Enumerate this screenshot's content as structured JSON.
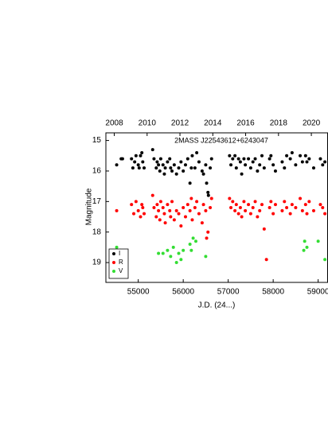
{
  "chart_data": {
    "type": "scatter",
    "title": "2MASS J22543612+6243047",
    "x_label": "J.D. (24...)",
    "y_label": "Magnitude",
    "xlim": [
      54280,
      59210
    ],
    "xticks": [
      55000,
      56000,
      57000,
      58000,
      59000
    ],
    "x2lim": [
      2007.49,
      2020.99
    ],
    "x2ticks": [
      2008,
      2010,
      2012,
      2014,
      2016,
      2018,
      2020
    ],
    "ylim": [
      14.75,
      19.65
    ],
    "yticks": [
      15,
      16,
      17,
      18,
      19
    ],
    "y_inverted": true,
    "legend": "lower left",
    "series": [
      {
        "name": "I",
        "color": "#000000",
        "x": [
          54520,
          54620,
          54650,
          54850,
          54880,
          54920,
          54950,
          55000,
          55020,
          55050,
          55080,
          55100,
          55130,
          55320,
          55350,
          55400,
          55420,
          55450,
          55480,
          55500,
          55550,
          55580,
          55600,
          55650,
          55700,
          55720,
          55750,
          55800,
          55850,
          55900,
          55950,
          56000,
          56050,
          56100,
          56150,
          56180,
          56200,
          56260,
          56300,
          56350,
          56420,
          56450,
          56500,
          56520,
          56550,
          56560,
          56600,
          56630,
          57030,
          57060,
          57100,
          57150,
          57180,
          57230,
          57270,
          57300,
          57350,
          57380,
          57450,
          57500,
          57550,
          57600,
          57650,
          57700,
          57750,
          57800,
          57920,
          57950,
          58000,
          58050,
          58200,
          58250,
          58300,
          58380,
          58420,
          58500,
          58600,
          58650,
          58720,
          58750,
          58800,
          58900,
          59050,
          59100,
          59150
        ],
        "values": [
          15.8,
          15.6,
          15.6,
          15.6,
          15.9,
          15.7,
          15.5,
          15.8,
          15.9,
          15.5,
          15.4,
          15.7,
          15.9,
          15.3,
          15.6,
          15.9,
          15.7,
          15.8,
          16.0,
          15.6,
          15.8,
          16.1,
          15.9,
          15.7,
          15.6,
          15.9,
          16.0,
          15.8,
          16.1,
          15.9,
          15.7,
          16.0,
          15.8,
          15.6,
          16.4,
          15.9,
          15.5,
          15.9,
          15.4,
          15.7,
          16.0,
          16.1,
          15.8,
          16.4,
          16.7,
          16.8,
          15.9,
          15.6,
          15.5,
          15.8,
          15.6,
          15.5,
          15.9,
          15.6,
          15.7,
          16.1,
          15.6,
          15.8,
          15.6,
          15.9,
          15.7,
          15.6,
          16.0,
          15.8,
          15.5,
          15.9,
          15.6,
          15.5,
          15.8,
          16.0,
          15.7,
          15.9,
          15.5,
          15.6,
          15.4,
          15.8,
          15.5,
          15.7,
          15.5,
          15.7,
          15.6,
          15.9,
          15.6,
          15.8,
          15.7
        ]
      },
      {
        "name": "R",
        "color": "#ff0000",
        "x": [
          54520,
          54850,
          54900,
          54950,
          55000,
          55050,
          55080,
          55100,
          55130,
          55320,
          55350,
          55400,
          55420,
          55450,
          55480,
          55500,
          55550,
          55580,
          55600,
          55650,
          55700,
          55720,
          55750,
          55800,
          55850,
          55900,
          55950,
          56000,
          56050,
          56100,
          56150,
          56180,
          56200,
          56260,
          56300,
          56350,
          56420,
          56450,
          56500,
          56520,
          56550,
          56600,
          56630,
          57030,
          57060,
          57100,
          57150,
          57180,
          57230,
          57270,
          57300,
          57350,
          57380,
          57450,
          57500,
          57550,
          57600,
          57650,
          57700,
          57750,
          57800,
          57850,
          57920,
          57950,
          58000,
          58050,
          58200,
          58250,
          58300,
          58380,
          58420,
          58500,
          58600,
          58650,
          58720,
          58750,
          58800,
          58900,
          59050,
          59100,
          59150
        ],
        "values": [
          17.3,
          17.1,
          17.4,
          17.0,
          17.3,
          17.5,
          17.1,
          17.2,
          17.4,
          16.8,
          17.2,
          17.5,
          17.1,
          17.3,
          17.6,
          17.0,
          17.2,
          17.4,
          17.7,
          17.1,
          17.3,
          17.5,
          17.0,
          17.6,
          17.3,
          17.4,
          17.8,
          17.2,
          17.5,
          17.1,
          17.3,
          16.9,
          17.6,
          17.2,
          17.0,
          17.4,
          17.7,
          17.1,
          17.3,
          18.2,
          18.0,
          17.2,
          16.9,
          16.9,
          17.2,
          17.0,
          17.3,
          17.1,
          17.4,
          17.2,
          17.5,
          17.0,
          17.3,
          17.1,
          17.4,
          17.2,
          17.0,
          17.5,
          17.3,
          17.1,
          17.9,
          18.9,
          17.2,
          17.0,
          17.4,
          17.1,
          17.3,
          17.0,
          17.2,
          17.4,
          17.1,
          17.2,
          16.9,
          17.3,
          17.1,
          17.4,
          17.0,
          17.3,
          17.1,
          17.2,
          17.4
        ]
      },
      {
        "name": "V",
        "color": "#33dd33",
        "x": [
          54520,
          54600,
          55450,
          55550,
          55650,
          55720,
          55780,
          55850,
          55900,
          55950,
          56000,
          56150,
          56180,
          56220,
          56280,
          56500,
          58680,
          58700,
          58750,
          59000,
          59150
        ],
        "values": [
          18.5,
          18.6,
          18.7,
          18.7,
          18.6,
          18.8,
          18.5,
          19.0,
          18.7,
          18.9,
          18.6,
          18.4,
          18.6,
          18.2,
          18.3,
          18.8,
          18.6,
          18.3,
          18.5,
          18.3,
          18.9
        ]
      }
    ]
  }
}
